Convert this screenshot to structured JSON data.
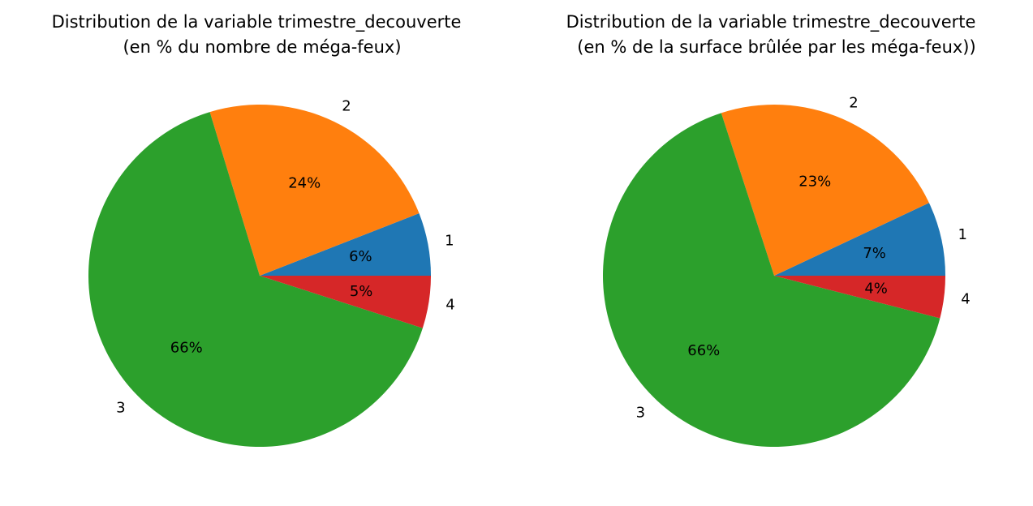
{
  "chart_data": [
    {
      "type": "pie",
      "title_line1": "Distribution de la variable trimestre_decouverte",
      "title_line2": "(en % du nombre de méga-feux)",
      "start_angle": 0,
      "direction": "counterclockwise",
      "slices": [
        {
          "label": "1",
          "value": 6,
          "pct_label": "6%",
          "color": "#1f77b4"
        },
        {
          "label": "2",
          "value": 24,
          "pct_label": "24%",
          "color": "#ff7f0e"
        },
        {
          "label": "3",
          "value": 66,
          "pct_label": "66%",
          "color": "#2ca02c"
        },
        {
          "label": "4",
          "value": 5,
          "pct_label": "5%",
          "color": "#d62728"
        }
      ]
    },
    {
      "type": "pie",
      "title_line1": "Distribution de la variable trimestre_decouverte",
      "title_line2": "(en % de la surface brûlée par les méga-feux))",
      "start_angle": 0,
      "direction": "counterclockwise",
      "slices": [
        {
          "label": "1",
          "value": 7,
          "pct_label": "7%",
          "color": "#1f77b4"
        },
        {
          "label": "2",
          "value": 23,
          "pct_label": "23%",
          "color": "#ff7f0e"
        },
        {
          "label": "3",
          "value": 66,
          "pct_label": "66%",
          "color": "#2ca02c"
        },
        {
          "label": "4",
          "value": 4,
          "pct_label": "4%",
          "color": "#d62728"
        }
      ]
    }
  ]
}
